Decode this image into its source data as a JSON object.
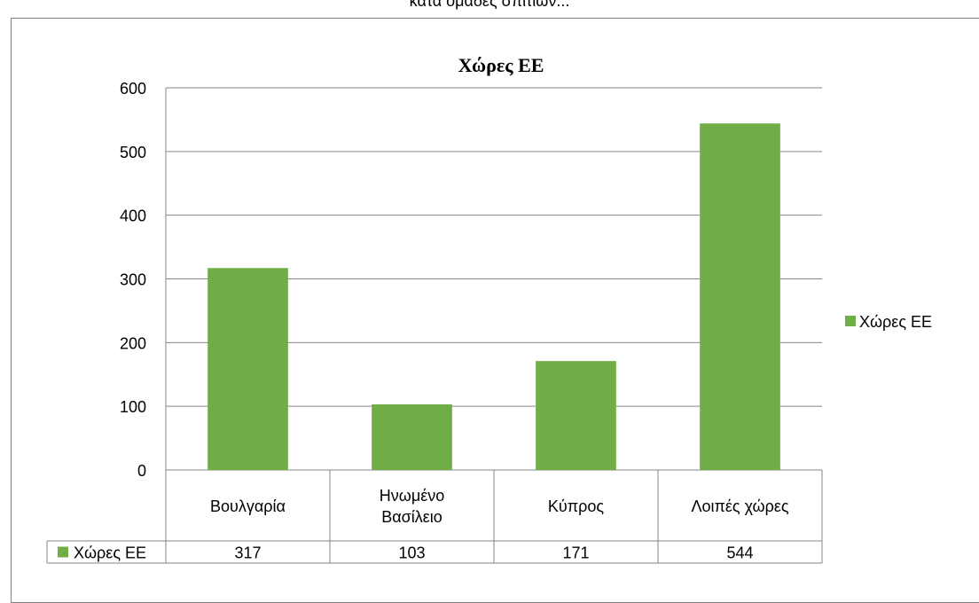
{
  "header": {
    "partial_text": "κατά ομάδες σπιτιών..."
  },
  "chart_data": {
    "type": "bar",
    "title": "Χώρες ΕΕ",
    "categories": [
      "Βουλγαρία",
      "Ηνωμένο Βασίλειο",
      "Κύπρος",
      "Λοιπές χώρες"
    ],
    "category_lines": [
      [
        "Βουλγαρία"
      ],
      [
        "Ηνωμένο",
        "Βασίλειο"
      ],
      [
        "Κύπρος"
      ],
      [
        "Λοιπές χώρες"
      ]
    ],
    "series": [
      {
        "name": "Χώρες ΕΕ",
        "values": [
          317,
          103,
          171,
          544
        ],
        "value_labels": [
          "317",
          "103",
          "171",
          "544"
        ]
      }
    ],
    "ylim": [
      0,
      600
    ],
    "yticks": [
      0,
      100,
      200,
      300,
      400,
      500,
      600
    ],
    "ytick_labels": [
      "0",
      "100",
      "200",
      "300",
      "400",
      "500",
      "600"
    ],
    "grid": true,
    "legend": "right",
    "data_table": true,
    "color": "#70ad47"
  }
}
